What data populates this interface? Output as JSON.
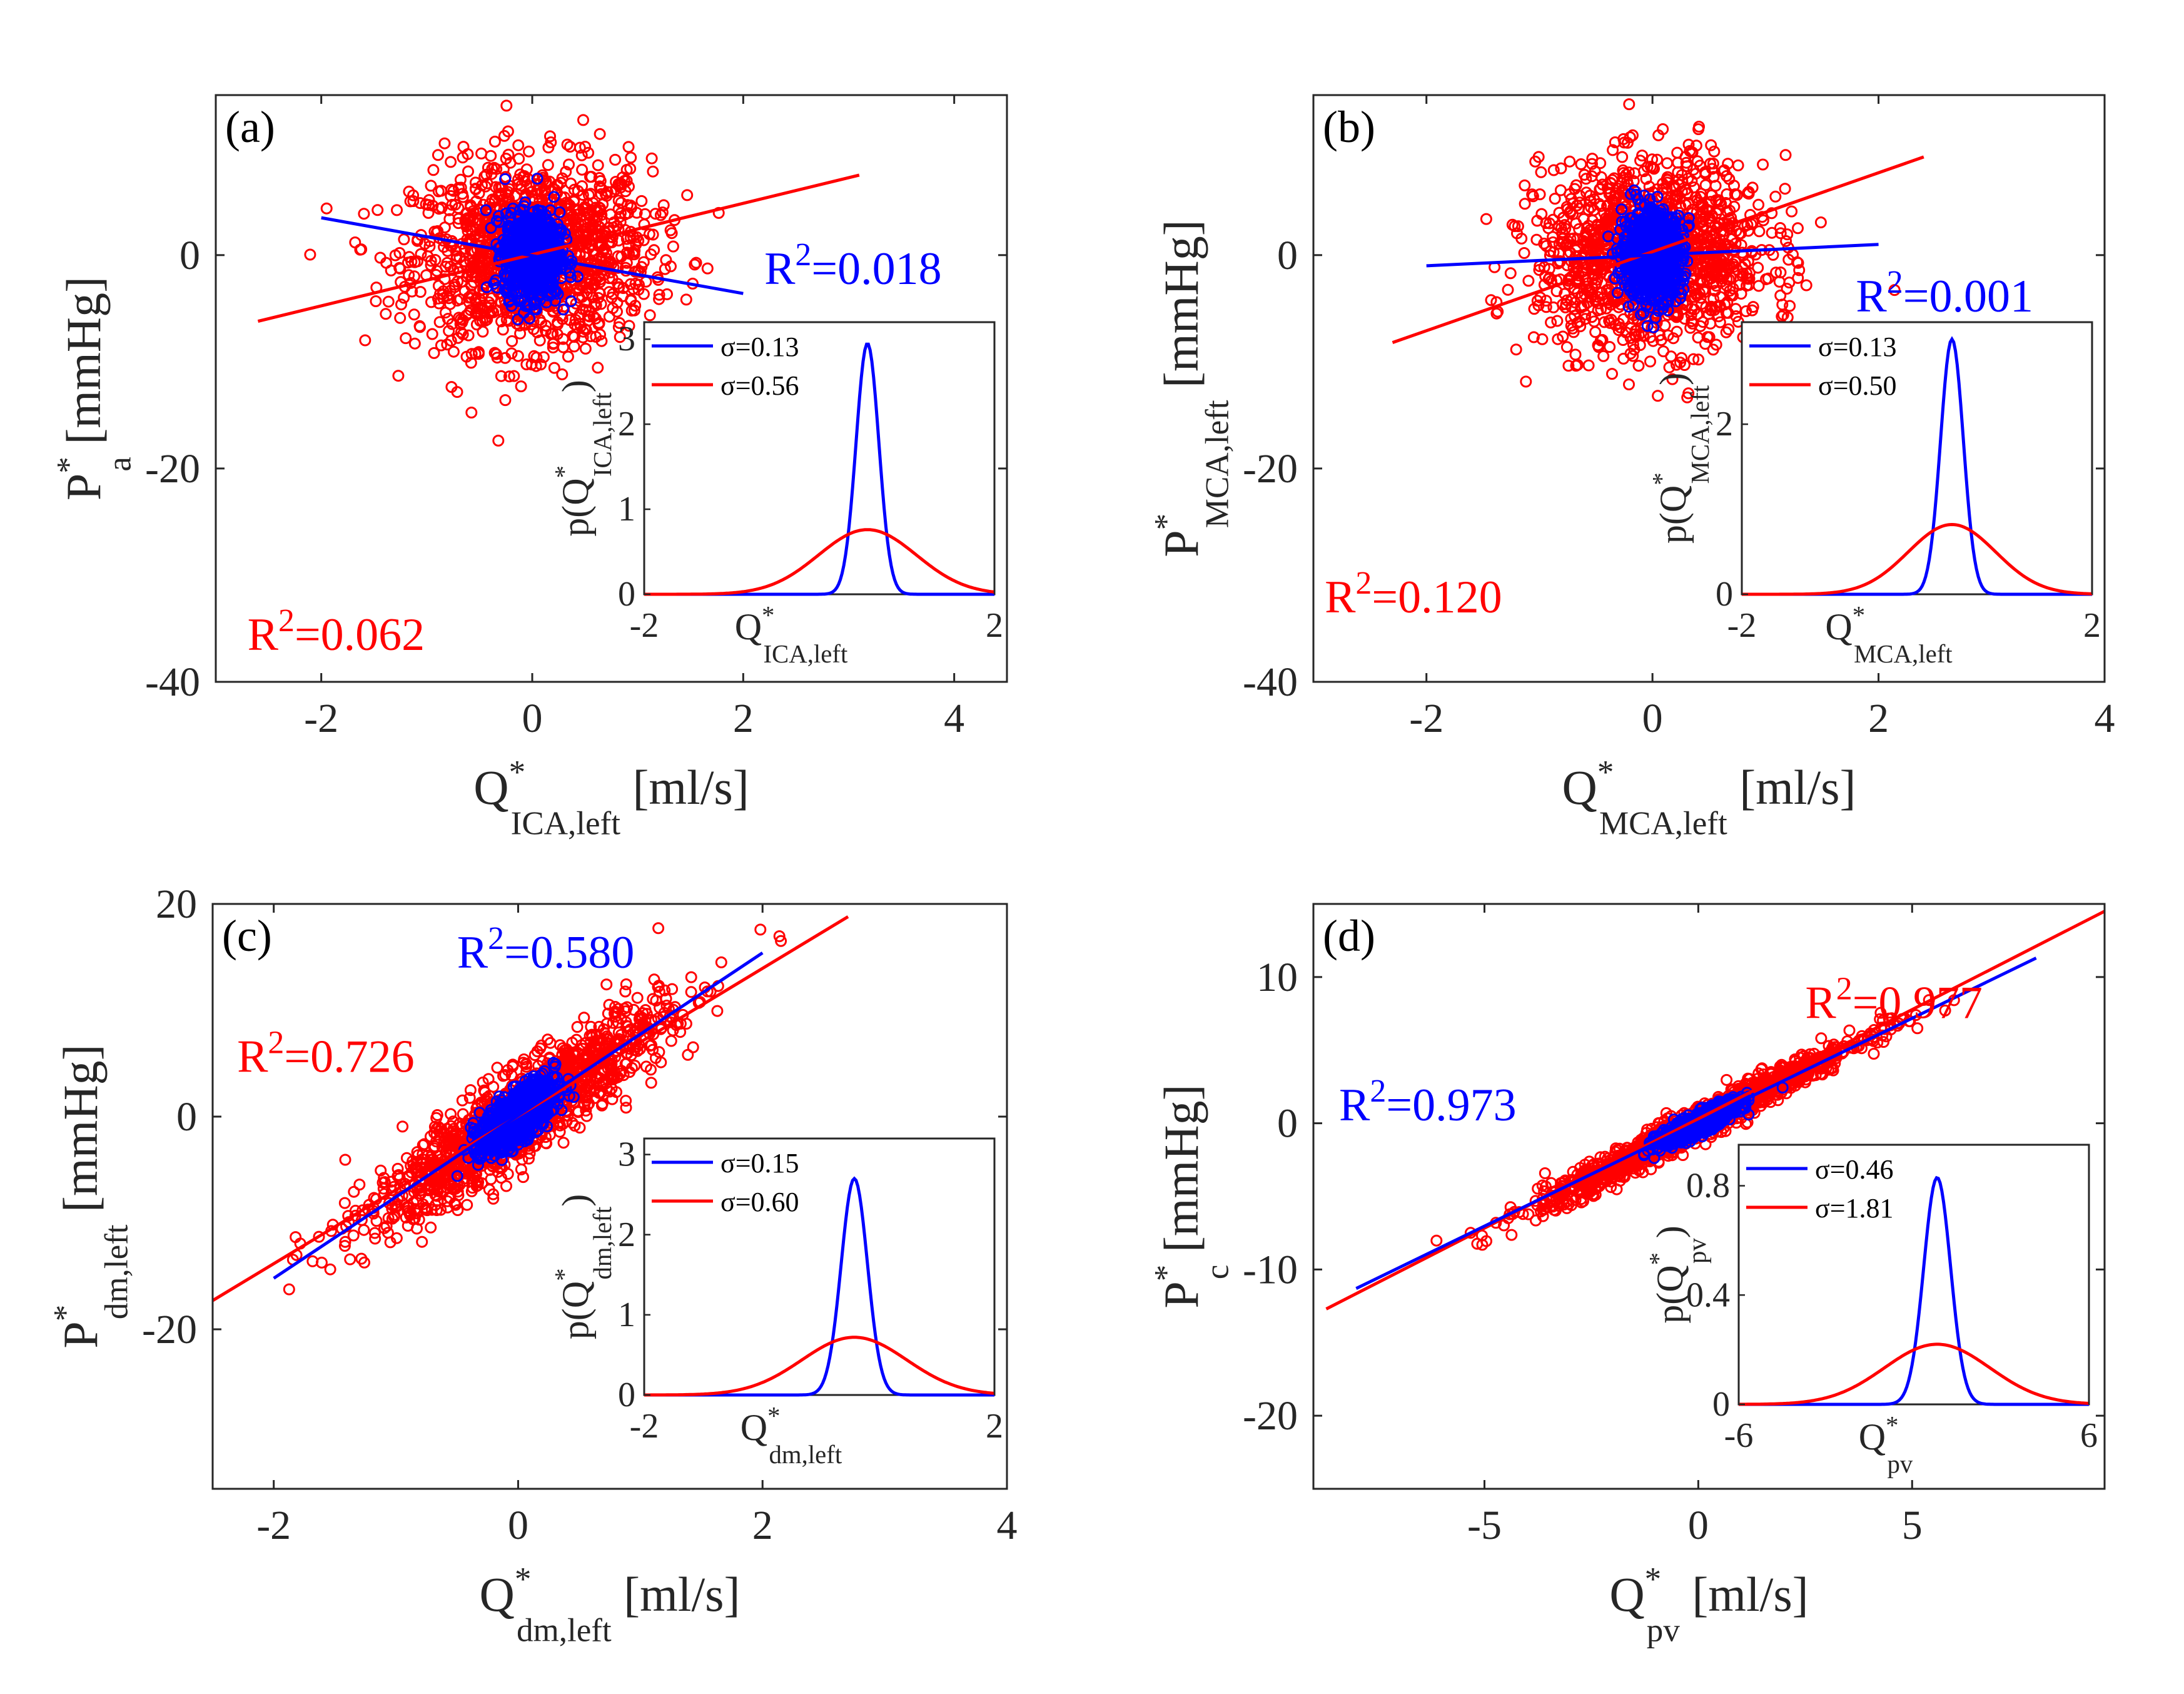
{
  "colors": {
    "scatter": "#ff0000",
    "fit_red": "#ff0000",
    "fit_blue": "#0000ff",
    "axis": "#262626",
    "label": "#262626"
  },
  "chart_data": [
    {
      "type": "scatter",
      "panel_label": "(a)",
      "x_label": {
        "base": "Q",
        "sup": "*",
        "sub": "ICA,left",
        "unit": " [ml/s]"
      },
      "y_label": {
        "base": "P",
        "sup": "*",
        "sub": "a",
        "unit": " [mmHg]"
      },
      "xlim": [
        -3,
        4.5
      ],
      "ylim": [
        -40,
        15
      ],
      "xticks": [
        -2,
        0,
        2,
        4
      ],
      "yticks": [
        -40,
        -20,
        0
      ],
      "red_cloud": {
        "center": [
          0,
          0
        ],
        "spread": [
          0.56,
          4.3
        ],
        "slope": 0.3,
        "points": 1400
      },
      "blue_cloud": {
        "center": [
          0,
          0
        ],
        "spread": [
          0.13,
          2.0
        ],
        "slope": 0,
        "points": 900
      },
      "fits": [
        {
          "color": "red",
          "x": [
            -2.6,
            3.1
          ],
          "y": [
            -6.2,
            7.5
          ]
        },
        {
          "color": "blue",
          "x": [
            -2.0,
            2.0
          ],
          "y": [
            3.5,
            -3.6
          ]
        }
      ],
      "annotations": [
        {
          "color": "blue",
          "text": "R",
          "sup": "2",
          "value": "=0.018",
          "x": 2.2,
          "y": -2.7
        },
        {
          "color": "red",
          "text": "R",
          "sup": "2",
          "value": "=0.062",
          "x": -2.7,
          "y": -37.0
        }
      ],
      "inset": {
        "xlim": [
          -2,
          2
        ],
        "ylim": [
          0,
          3.2
        ],
        "xticks": [
          -2,
          2
        ],
        "yticks": [
          0,
          1,
          2,
          3
        ],
        "x_label": {
          "base": "Q",
          "sup": "*",
          "sub": "ICA,left"
        },
        "y_label": {
          "pre": "p(",
          "base": "Q",
          "sup": "*",
          "sub": "ICA,left",
          "post": ")"
        },
        "curves": [
          {
            "color": "blue",
            "sigma": 0.13,
            "peak": 2.95,
            "mu": 0.55
          },
          {
            "color": "red",
            "sigma": 0.56,
            "peak": 0.76,
            "mu": 0.55
          }
        ],
        "legend": [
          "σ=0.13",
          "σ=0.56"
        ]
      }
    },
    {
      "type": "scatter",
      "panel_label": "(b)",
      "x_label": {
        "base": "Q",
        "sup": "*",
        "sub": "MCA,left",
        "unit": " [ml/s]"
      },
      "y_label": {
        "base": "P",
        "sup": "*",
        "sub": "MCA,left",
        "unit": " [mmHg]"
      },
      "xlim": [
        -3,
        4
      ],
      "ylim": [
        -40,
        15
      ],
      "xticks": [
        -2,
        0,
        2,
        4
      ],
      "yticks": [
        -40,
        -20,
        0
      ],
      "red_cloud": {
        "center": [
          0,
          0
        ],
        "spread": [
          0.5,
          4.3
        ],
        "slope": 0.3,
        "points": 1400
      },
      "blue_cloud": {
        "center": [
          0,
          0
        ],
        "spread": [
          0.13,
          2.0
        ],
        "slope": 0,
        "points": 900
      },
      "fits": [
        {
          "color": "red",
          "x": [
            -2.3,
            2.4
          ],
          "y": [
            -8.2,
            9.2
          ]
        },
        {
          "color": "blue",
          "x": [
            -2.0,
            2.0
          ],
          "y": [
            -1.0,
            1.0
          ]
        }
      ],
      "annotations": [
        {
          "color": "blue",
          "text": "R",
          "sup": "2",
          "value": "=0.001",
          "x": 1.8,
          "y": -5.3
        },
        {
          "color": "red",
          "text": "R",
          "sup": "2",
          "value": "=0.120",
          "x": -2.9,
          "y": -33.5
        }
      ],
      "inset": {
        "xlim": [
          -2,
          2
        ],
        "ylim": [
          0,
          3.2
        ],
        "xticks": [
          -2,
          2
        ],
        "yticks": [
          0,
          2
        ],
        "x_label": {
          "base": "Q",
          "sup": "*",
          "sub": "MCA,left"
        },
        "y_label": {
          "pre": "p(",
          "base": "Q",
          "sup": "*",
          "sub": "MCA,left",
          "post": ")"
        },
        "curves": [
          {
            "color": "blue",
            "sigma": 0.13,
            "peak": 3.0,
            "mu": 0.4
          },
          {
            "color": "red",
            "sigma": 0.5,
            "peak": 0.82,
            "mu": 0.4
          }
        ],
        "legend": [
          "σ=0.13",
          "σ=0.50"
        ]
      }
    },
    {
      "type": "scatter",
      "panel_label": "(c)",
      "x_label": {
        "base": "Q",
        "sup": "*",
        "sub": "dm,left",
        "unit": " [ml/s]"
      },
      "y_label": {
        "base": "P",
        "sup": "*",
        "sub": "dm,left",
        "unit": " [mmHg]"
      },
      "xlim": [
        -2.5,
        4
      ],
      "ylim": [
        -35,
        20
      ],
      "xticks": [
        -2,
        0,
        2,
        4
      ],
      "yticks": [
        -20,
        0,
        20
      ],
      "red_cloud": {
        "center": [
          0,
          0
        ],
        "spread": [
          0.6,
          2.1
        ],
        "slope": 7.6,
        "points": 1400
      },
      "blue_cloud": {
        "center": [
          0,
          0
        ],
        "spread": [
          0.15,
          1.2
        ],
        "slope": 7.6,
        "points": 900
      },
      "fits": [
        {
          "color": "red",
          "x": [
            -2.5,
            2.7
          ],
          "y": [
            -17.3,
            18.8
          ]
        },
        {
          "color": "blue",
          "x": [
            -2.0,
            2.0
          ],
          "y": [
            -15.2,
            15.4
          ]
        }
      ],
      "annotations": [
        {
          "color": "blue",
          "text": "R",
          "sup": "2",
          "value": "=0.580",
          "x": -0.5,
          "y": 14.0
        },
        {
          "color": "red",
          "text": "R",
          "sup": "2",
          "value": "=0.726",
          "x": -2.3,
          "y": 4.2
        }
      ],
      "inset": {
        "xlim": [
          -2,
          2
        ],
        "ylim": [
          0,
          3.2
        ],
        "xticks": [
          -2,
          2
        ],
        "yticks": [
          0,
          1,
          2,
          3
        ],
        "x_label": {
          "base": "Q",
          "sup": "*",
          "sub": "dm,left"
        },
        "y_label": {
          "pre": "p(",
          "base": "Q",
          "sup": "*",
          "sub": "dm,left",
          "post": ")"
        },
        "curves": [
          {
            "color": "blue",
            "sigma": 0.15,
            "peak": 2.7,
            "mu": 0.4
          },
          {
            "color": "red",
            "sigma": 0.6,
            "peak": 0.72,
            "mu": 0.4
          }
        ],
        "legend": [
          "σ=0.15",
          "σ=0.60"
        ]
      }
    },
    {
      "type": "scatter",
      "panel_label": "(d)",
      "x_label": {
        "base": "Q",
        "sup": "*",
        "sub": "pv",
        "unit": " [ml/s]"
      },
      "y_label": {
        "base": "P",
        "sup": "*",
        "sub": "c",
        "unit": " [mmHg]"
      },
      "xlim": [
        -9,
        9.5
      ],
      "ylim": [
        -25,
        15
      ],
      "xticks": [
        -5,
        0,
        5
      ],
      "yticks": [
        -20,
        -10,
        0,
        10
      ],
      "red_cloud": {
        "center": [
          0,
          0
        ],
        "spread": [
          1.81,
          0.55
        ],
        "slope": 1.5,
        "points": 1500
      },
      "blue_cloud": {
        "center": [
          0,
          0
        ],
        "spread": [
          0.46,
          0.35
        ],
        "slope": 1.4,
        "points": 900
      },
      "fits": [
        {
          "color": "red",
          "x": [
            -8.7,
            9.5
          ],
          "y": [
            -12.7,
            14.5
          ]
        },
        {
          "color": "blue",
          "x": [
            -8.0,
            7.9
          ],
          "y": [
            -11.3,
            11.3
          ]
        }
      ],
      "annotations": [
        {
          "color": "red",
          "text": "R",
          "sup": "2",
          "value": "=0.977",
          "x": 2.5,
          "y": 7.2
        },
        {
          "color": "blue",
          "text": "R",
          "sup": "2",
          "value": "=0.973",
          "x": -8.4,
          "y": 0.2
        }
      ],
      "inset": {
        "xlim": [
          -6,
          6
        ],
        "ylim": [
          0,
          0.95
        ],
        "xticks": [
          -6,
          6
        ],
        "yticks": [
          0,
          0.4,
          0.8
        ],
        "x_label": {
          "base": "Q",
          "sup": "*",
          "sub": "pv"
        },
        "y_label": {
          "pre": "p(",
          "base": "Q",
          "sup": "*",
          "sub": "pv",
          "post": ")"
        },
        "curves": [
          {
            "color": "blue",
            "sigma": 0.46,
            "peak": 0.83,
            "mu": 0.8
          },
          {
            "color": "red",
            "sigma": 1.81,
            "peak": 0.22,
            "mu": 0.8
          }
        ],
        "legend": [
          "σ=0.46",
          "σ=1.81"
        ]
      }
    }
  ]
}
